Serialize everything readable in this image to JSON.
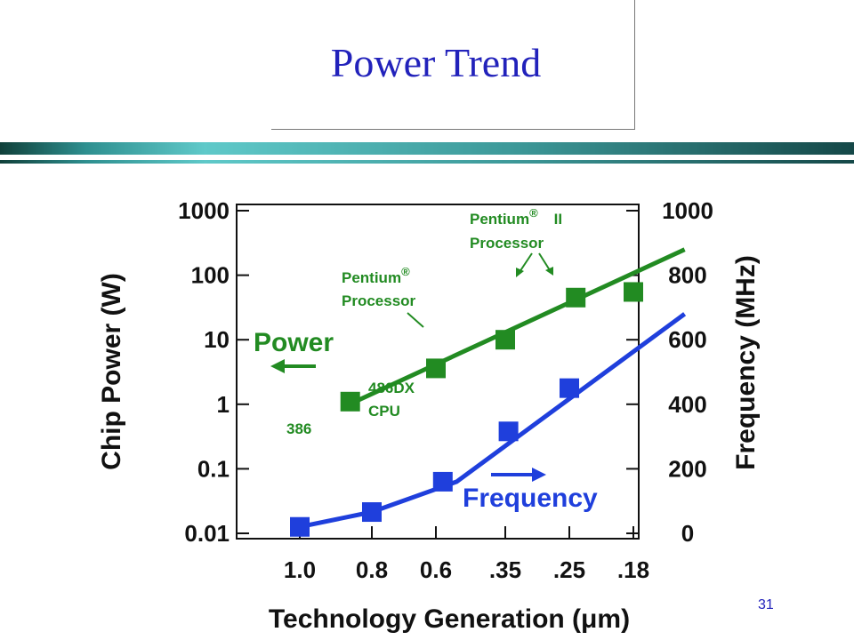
{
  "slide": {
    "title": "Power Trend",
    "number": "31"
  },
  "colors": {
    "power": "#228b22",
    "frequency": "#1f3fdc",
    "title": "#2222bb",
    "axis": "#111111"
  },
  "chart_data": {
    "type": "line",
    "title": "",
    "xlabel": "Technology Generation (μm)",
    "categories": [
      "1.0",
      "0.8",
      "0.6",
      ".35",
      ".25",
      ".18"
    ],
    "y_left": {
      "label": "Chip Power (W)",
      "scale": "log",
      "ticks": [
        "1000",
        "100",
        "10",
        "1",
        "0.1",
        "0.01"
      ],
      "range": [
        0.01,
        1000
      ]
    },
    "y_right": {
      "label": "Frequency (MHz)",
      "scale": "linear",
      "ticks": [
        "1000",
        "800",
        "600",
        "400",
        "200",
        "0"
      ],
      "range": [
        0,
        1000
      ]
    },
    "grid": false,
    "series": [
      {
        "name": "Power",
        "axis": "left",
        "points": [
          {
            "x": 0.7,
            "y": 1.1
          },
          {
            "x": 2.0,
            "y": 3.6
          },
          {
            "x": 3.0,
            "y": 10
          },
          {
            "x": 4.1,
            "y": 45
          },
          {
            "x": 5.0,
            "y": 55
          }
        ],
        "trend": [
          {
            "x": 0.6,
            "y": 0.9
          },
          {
            "x": 5.8,
            "y": 250
          }
        ]
      },
      {
        "name": "Frequency",
        "axis": "right",
        "points": [
          {
            "x": 0.0,
            "y": 20
          },
          {
            "x": 1.0,
            "y": 66
          },
          {
            "x": 2.1,
            "y": 160
          },
          {
            "x": 3.05,
            "y": 316
          },
          {
            "x": 4.0,
            "y": 450
          }
        ],
        "trend": [
          {
            "x": 0.0,
            "y": 20
          },
          {
            "x": 1.0,
            "y": 66
          },
          {
            "x": 2.3,
            "y": 160
          },
          {
            "x": 5.8,
            "y": 680
          }
        ]
      }
    ],
    "annotations": {
      "power_label": "Power",
      "frequency_label": "Frequency",
      "label_386": "386",
      "label_486_line1": "486DX",
      "label_486_line2": "CPU",
      "pentium_line1": "Pentium",
      "pentium_line2": "Processor",
      "pentium2_line1": "Pentium",
      "pentium2_suffix": "II",
      "pentium2_line2": "Processor",
      "registered": "®"
    }
  }
}
